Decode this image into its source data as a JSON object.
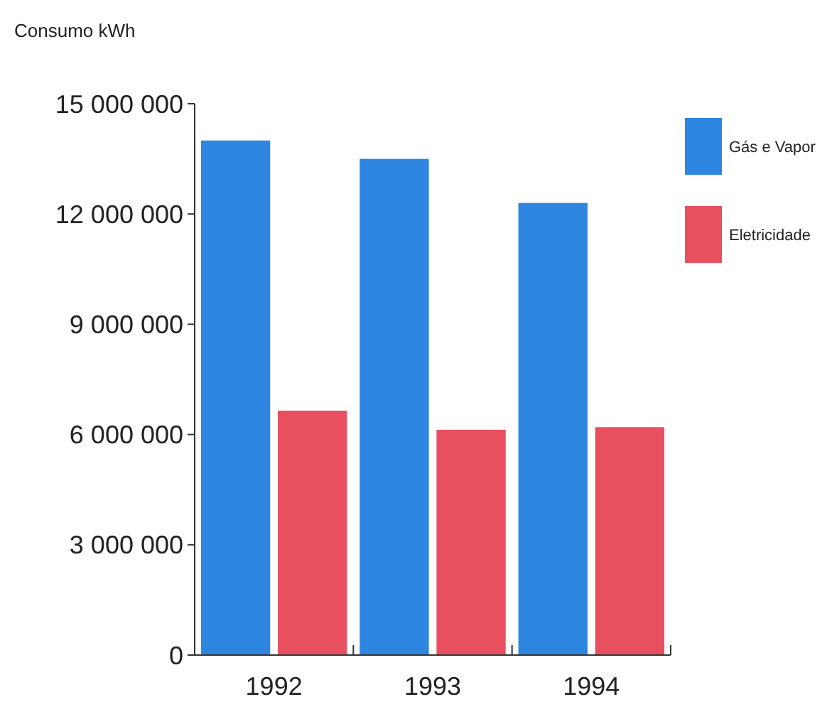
{
  "chart_data": {
    "type": "bar",
    "ylabel": "Consumo kWh",
    "categories": [
      "1992",
      "1993",
      "1994"
    ],
    "series": [
      {
        "name": "Gás e Vapor",
        "color": "#2f86e0",
        "values": [
          14000000,
          13500000,
          12300000
        ]
      },
      {
        "name": "Eletricidade",
        "color": "#e8505f",
        "values": [
          6650000,
          6130000,
          6200000
        ]
      }
    ],
    "ylim": [
      0,
      15000000
    ],
    "yticks": [
      {
        "value": 0,
        "label": "0"
      },
      {
        "value": 3000000,
        "label": "3 000 000"
      },
      {
        "value": 6000000,
        "label": "6 000 000"
      },
      {
        "value": 9000000,
        "label": "9 000 000"
      },
      {
        "value": 12000000,
        "label": "12 000 000"
      },
      {
        "value": 15000000,
        "label": "15 000 000"
      }
    ],
    "grid": false,
    "legend": "top right"
  }
}
